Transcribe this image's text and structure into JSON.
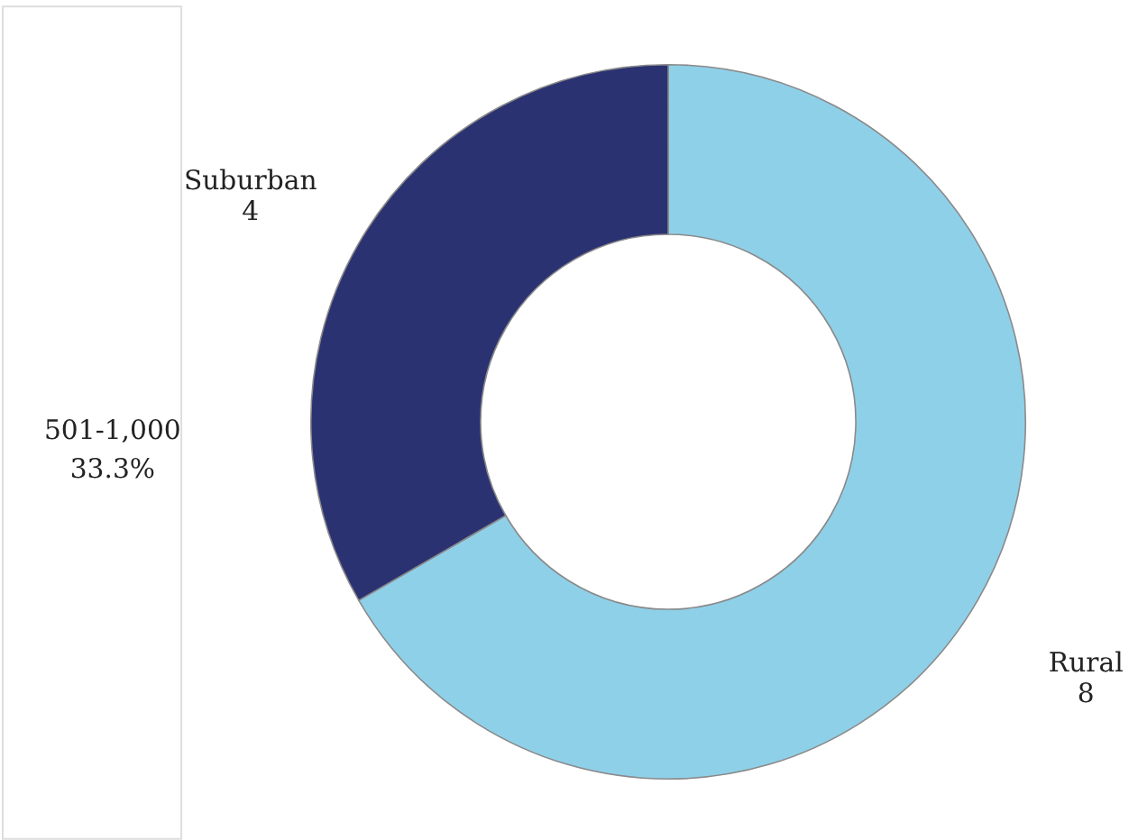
{
  "chart_data": [
    {
      "type": "other",
      "annotations": [
        "501-1,000",
        "33.3%"
      ]
    },
    {
      "type": "donut",
      "categories": [
        "Rural",
        "Suburban"
      ],
      "values": [
        8,
        4
      ],
      "colors": [
        "#8fd0e9",
        "#2b3272"
      ],
      "data_labels": true,
      "legend": false
    }
  ]
}
